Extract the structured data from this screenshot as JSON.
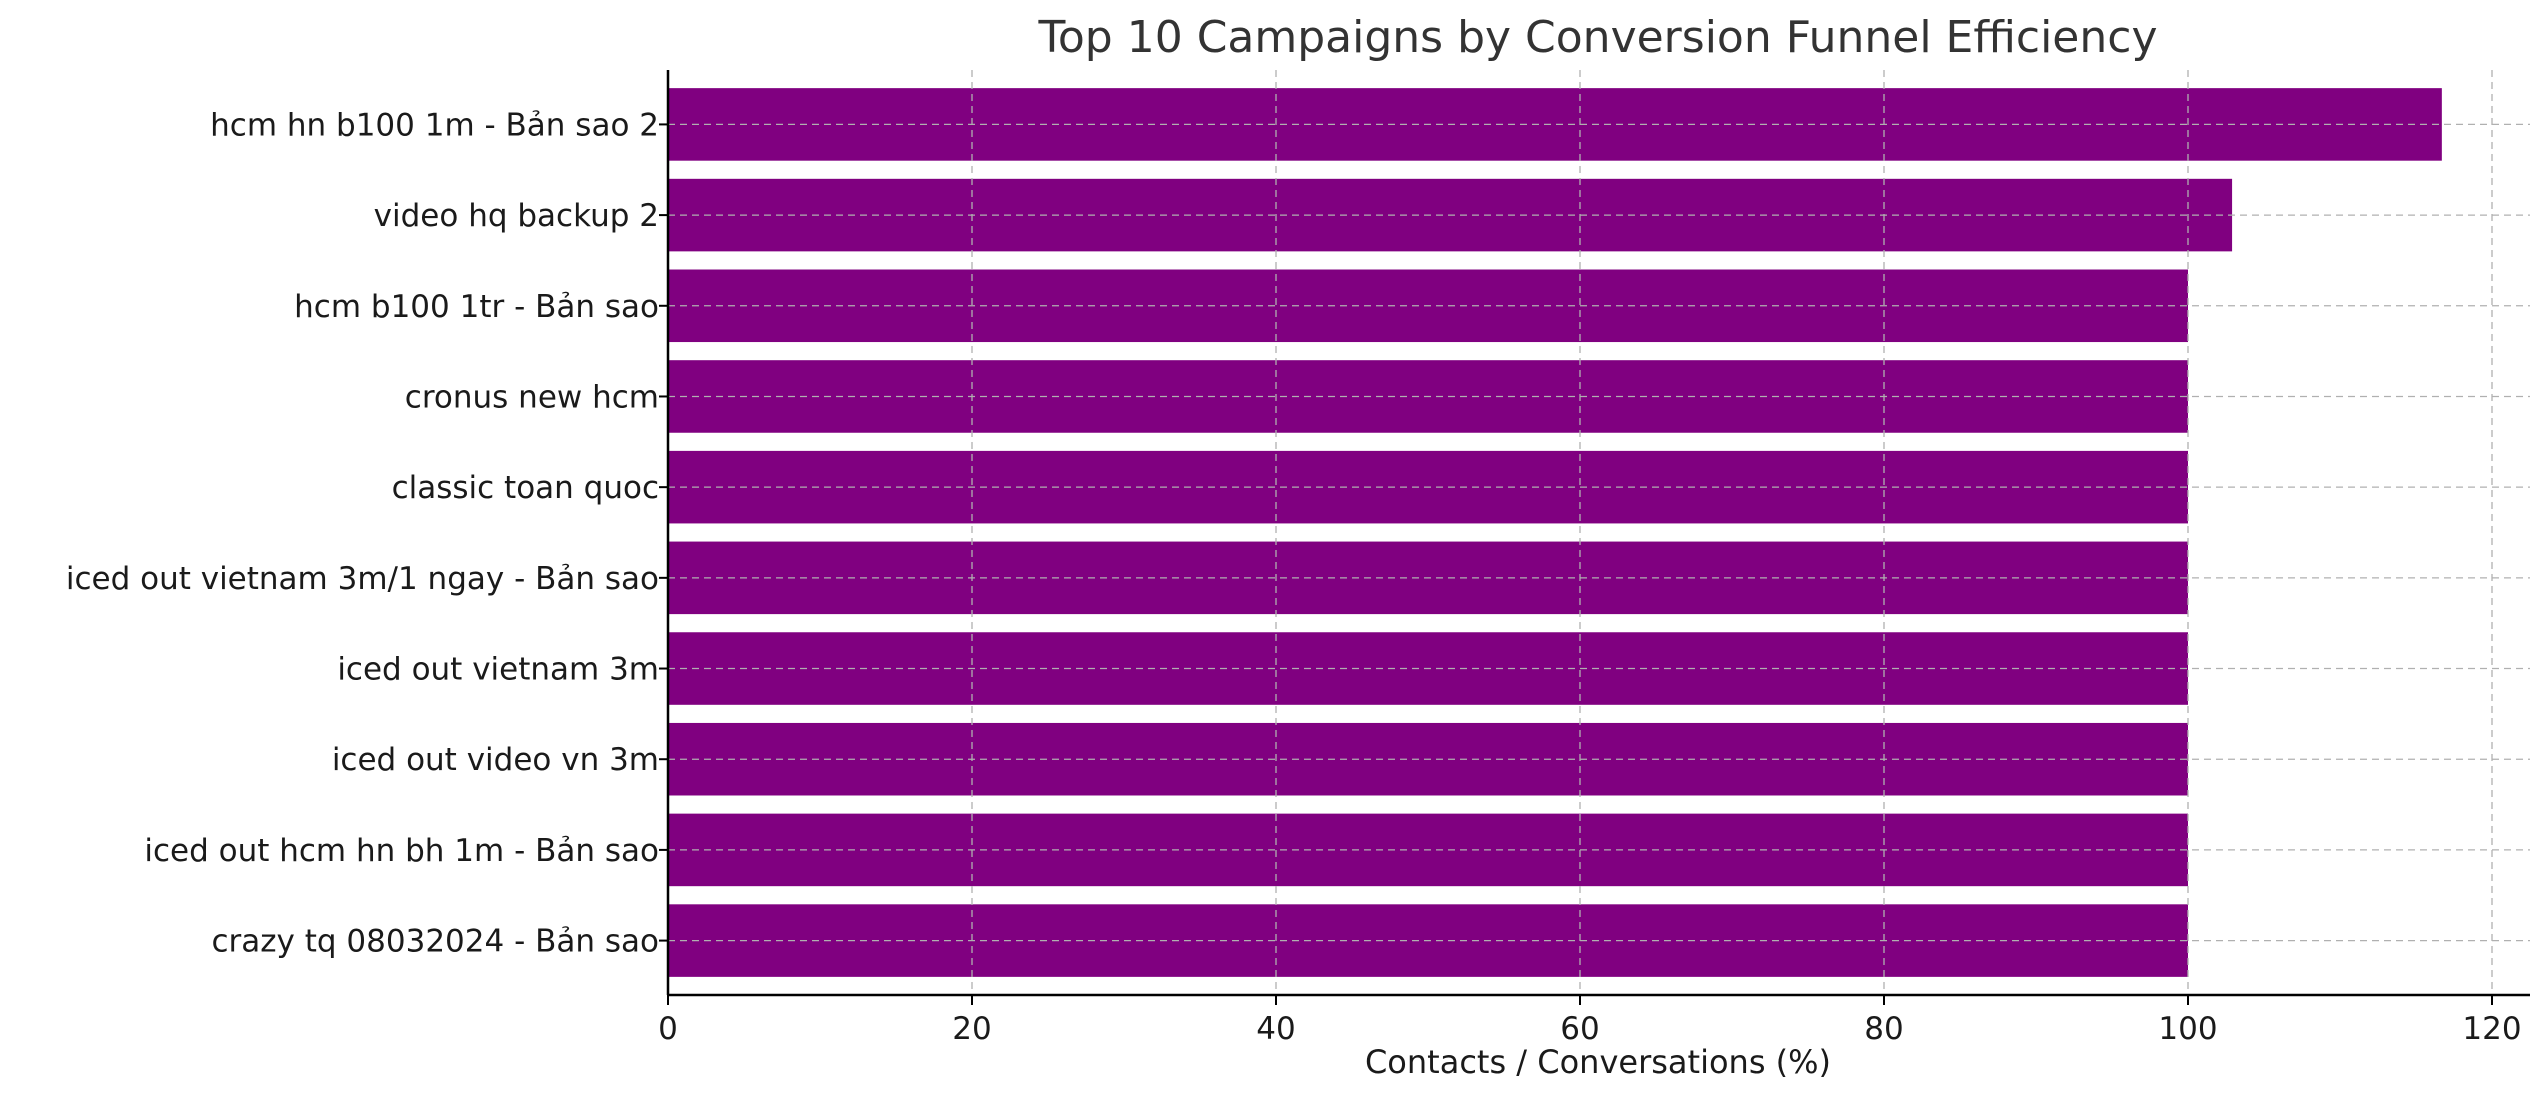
{
  "chart_data": {
    "type": "bar",
    "orientation": "horizontal",
    "title": "Top 10 Campaigns by Conversion Funnel Efficiency",
    "xlabel": "Contacts / Conversations (%)",
    "ylabel": "",
    "xlim": [
      0,
      122.5
    ],
    "xticks": [
      0,
      20,
      40,
      60,
      80,
      100,
      120
    ],
    "grid": true,
    "bar_color": "#800080",
    "categories": [
      "hcm hn b100 1m - Bản sao 2",
      "video hq backup 2",
      "hcm b100 1tr - Bản sao",
      "cronus new hcm",
      "classic toan quoc",
      "iced out vietnam 3m/1 ngay - Bản sao",
      "iced out vietnam 3m",
      "iced out video vn 3m",
      "iced out hcm hn bh 1m - Bản sao",
      "crazy tq 08032024 - Bản sao"
    ],
    "values": [
      116.7,
      102.9,
      100,
      100,
      100,
      100,
      100,
      100,
      100,
      100
    ]
  }
}
